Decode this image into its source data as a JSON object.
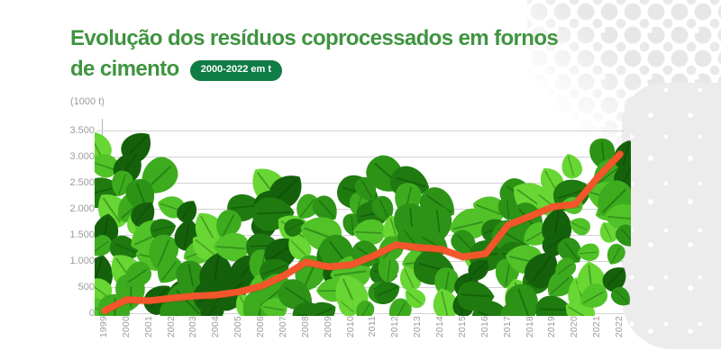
{
  "header": {
    "title_line1": "Evolução dos resíduos coprocessados em fornos",
    "title_line2": "de cimento",
    "badge": "2000-2022 em t"
  },
  "colors": {
    "title_green": "#3f9440",
    "badge_green": "#107c46",
    "line_orange": "#f2562a",
    "axis_text": "#9b9b9b",
    "gridline": "#d2d2d2"
  },
  "chart_data": {
    "type": "line",
    "title": "Evolução dos resíduos coprocessados em fornos de cimento",
    "badge": "2000-2022 em t",
    "unit_label": "(1000 t)",
    "xlabel": "",
    "ylabel": "(1000 t)",
    "categories": [
      "1999",
      "2000",
      "2001",
      "2002",
      "2003",
      "2004",
      "2005",
      "2006",
      "2007",
      "2008",
      "2009",
      "2010",
      "2011",
      "2012",
      "2013",
      "2014",
      "2015",
      "2016",
      "2017",
      "2018",
      "2019",
      "2020",
      "2021",
      "2022"
    ],
    "values": [
      50,
      260,
      240,
      290,
      330,
      350,
      410,
      520,
      720,
      980,
      890,
      930,
      1100,
      1310,
      1260,
      1230,
      1080,
      1140,
      1690,
      1860,
      2040,
      2090,
      2600,
      3050
    ],
    "ylim": [
      0,
      3500
    ],
    "yticks": [
      0,
      500,
      1000,
      1500,
      2000,
      2500,
      3000,
      3500
    ],
    "ytick_labels": [
      "0",
      "500",
      "1.000",
      "1.500",
      "2.000",
      "2.500",
      "3.000",
      "3.500"
    ],
    "grid": true,
    "legend": "none",
    "line_color": "#f2562a"
  }
}
